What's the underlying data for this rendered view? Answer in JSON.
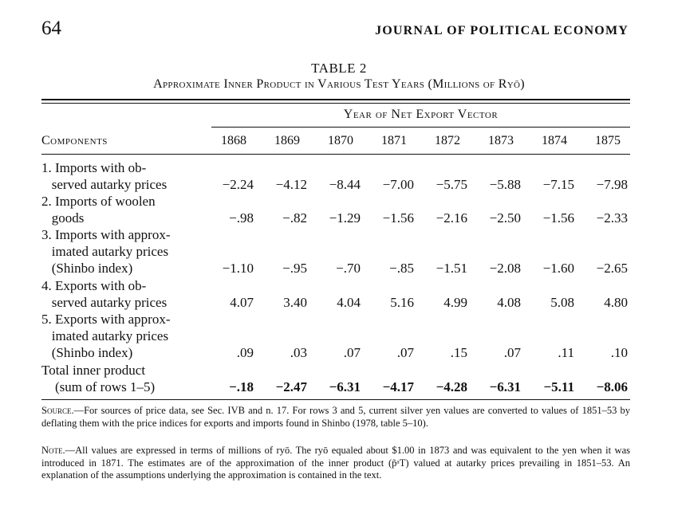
{
  "header": {
    "page_number": "64",
    "journal_title": "JOURNAL OF POLITICAL ECONOMY"
  },
  "table": {
    "label": "TABLE 2",
    "caption": "Approximate Inner Product in Various Test Years (Millions of Ryō)",
    "components_header": "Components",
    "group_header": "Year of Net Export Vector",
    "years": [
      "1868",
      "1869",
      "1870",
      "1871",
      "1872",
      "1873",
      "1874",
      "1875"
    ],
    "rows": [
      {
        "label_lines": [
          "1. Imports with ob-",
          "   served autarky prices"
        ],
        "values": [
          "−2.24",
          "−4.12",
          "−8.44",
          "−7.00",
          "−5.75",
          "−5.88",
          "−7.15",
          "−7.98"
        ]
      },
      {
        "label_lines": [
          "2. Imports of woolen",
          "   goods"
        ],
        "values": [
          "−.98",
          "−.82",
          "−1.29",
          "−1.56",
          "−2.16",
          "−2.50",
          "−1.56",
          "−2.33"
        ]
      },
      {
        "label_lines": [
          "3. Imports with approx-",
          "   imated autarky prices",
          "   (Shinbo index)"
        ],
        "values": [
          "−1.10",
          "−.95",
          "−.70",
          "−.85",
          "−1.51",
          "−2.08",
          "−1.60",
          "−2.65"
        ]
      },
      {
        "label_lines": [
          "4. Exports with ob-",
          "   served autarky prices"
        ],
        "values": [
          "4.07",
          "3.40",
          "4.04",
          "5.16",
          "4.99",
          "4.08",
          "5.08",
          "4.80"
        ]
      },
      {
        "label_lines": [
          "5. Exports with approx-",
          "   imated autarky prices",
          "   (Shinbo index)"
        ],
        "values": [
          ".09",
          ".03",
          ".07",
          ".07",
          ".15",
          ".07",
          ".11",
          ".10"
        ]
      },
      {
        "label_lines": [
          "Total inner product",
          "    (sum of rows 1–5)"
        ],
        "values": [
          "−.18",
          "−2.47",
          "−6.31",
          "−4.17",
          "−4.28",
          "−6.31",
          "−5.11",
          "−8.06"
        ]
      }
    ]
  },
  "footnotes": {
    "source_lead": "Source.",
    "source_text": "—For sources of price data, see Sec. IVB and n. 17. For rows 3 and 5, current silver yen values are converted to values of 1851–53 by deflating them with the price indices for exports and imports found in Shinbo (1978, table 5–10).",
    "note_lead": "Note.",
    "note_text": "—All values are expressed in terms of millions of ryō. The ryō equaled about $1.00 in 1873 and was equivalent to the yen when it was introduced in 1871. The estimates are of the approximation of the inner product (p̃ᵃT) valued at autarky prices prevailing in 1851–53. An explanation of the assumptions underlying the approximation is contained in the text."
  }
}
